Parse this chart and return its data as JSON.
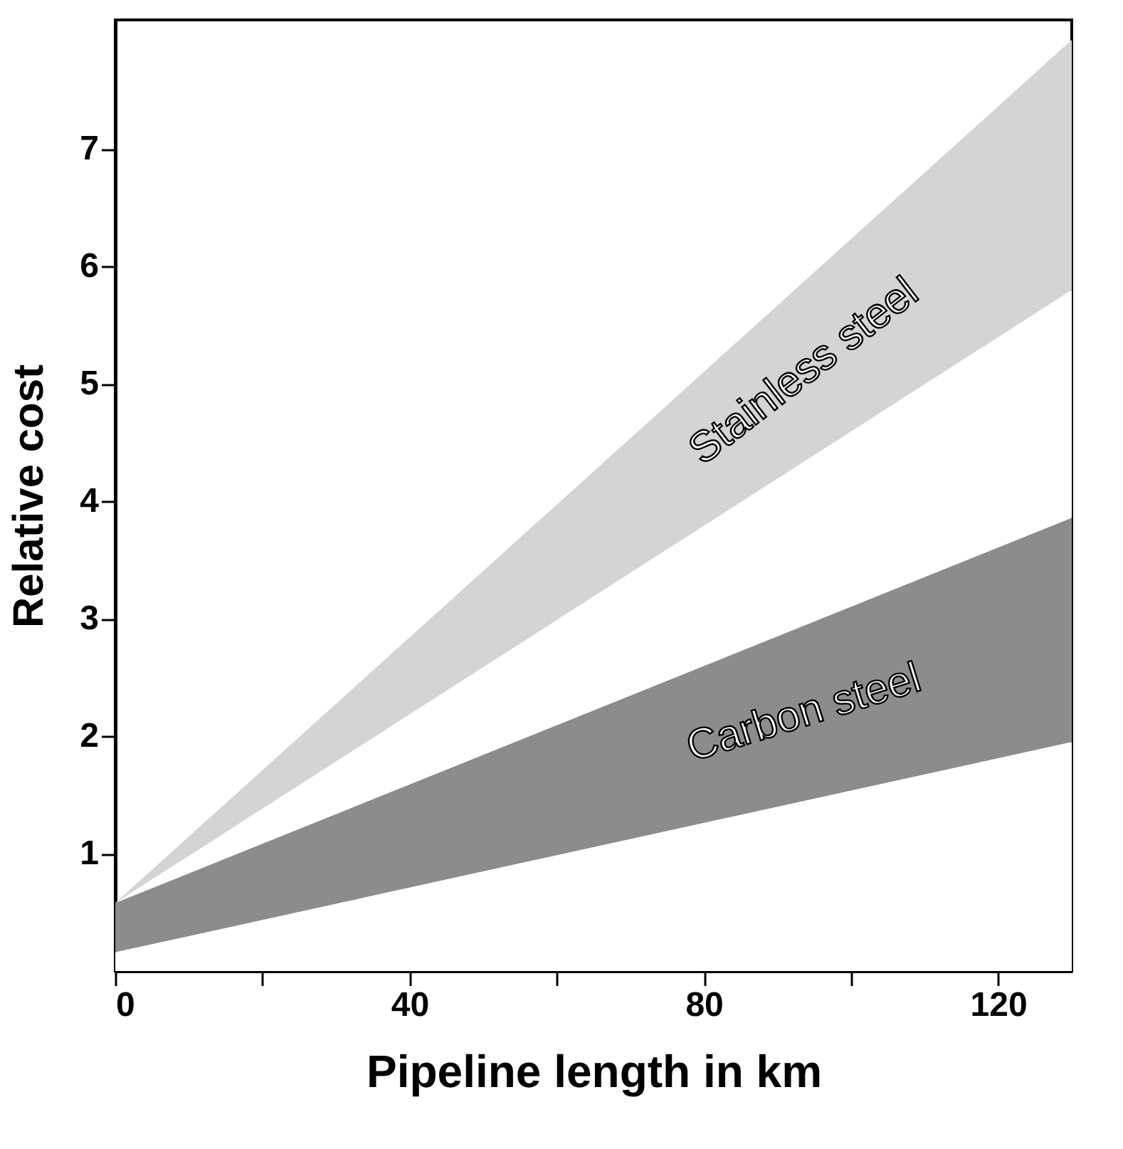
{
  "chart_data": {
    "type": "area",
    "stacked": true,
    "xlabel": "Pipeline length in km",
    "ylabel": "Relative cost",
    "x": [
      0,
      130
    ],
    "series": [
      {
        "color": "#ffffff",
        "values": [
          0.16,
          1.95
        ]
      },
      {
        "name": "Carbon steel",
        "color": "#8c8c8c",
        "values": [
          0.42,
          1.91
        ]
      },
      {
        "color": "#ffffff",
        "values": [
          0,
          1.94
        ]
      },
      {
        "name": "Stainless steel",
        "color": "#d4d4d4",
        "values": [
          0,
          2.13
        ]
      }
    ],
    "xlim": [
      0,
      130
    ],
    "xticks": [
      0,
      {
        "value": 20,
        "label": null
      },
      40,
      {
        "value": 60,
        "label": null
      },
      80,
      {
        "value": 100,
        "label": null
      },
      120
    ],
    "ylim": [
      0,
      8.1
    ],
    "yticks": [
      1,
      2,
      3,
      4,
      5,
      6,
      7
    ]
  }
}
